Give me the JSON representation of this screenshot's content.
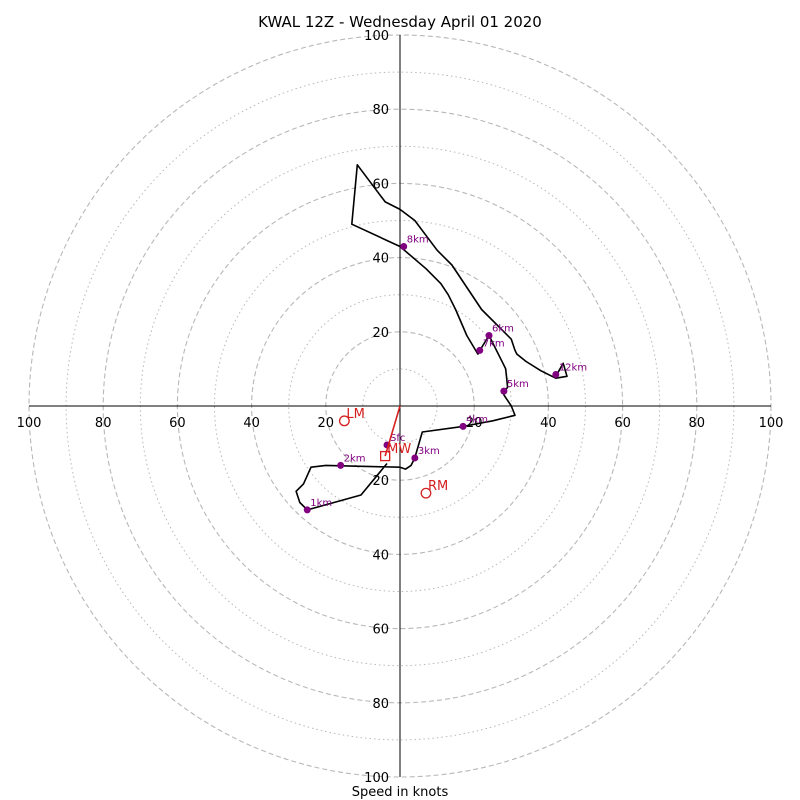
{
  "chart_data": {
    "type": "hodograph",
    "title": "KWAL 12Z - Wednesday April 01 2020",
    "xlabel": "Speed in knots",
    "ylabel": "",
    "rmax": 100,
    "ring_major": [
      20,
      40,
      60,
      80,
      100
    ],
    "ring_minor": [
      10,
      30,
      50,
      70,
      90
    ],
    "tick_values": [
      20,
      40,
      60,
      80,
      100
    ],
    "tick_labels": {
      "left": [
        "20",
        "40",
        "60",
        "80",
        "100"
      ],
      "right": [
        "20",
        "40",
        "60",
        "80",
        "100"
      ],
      "up": [
        "20",
        "40",
        "60",
        "80",
        "100"
      ],
      "down": [
        "20",
        "40",
        "60",
        "80",
        "100"
      ]
    },
    "grid": true,
    "profile_line": [
      [
        -3.5,
        -15.5
      ],
      [
        -10.5,
        -24
      ],
      [
        -25,
        -28
      ],
      [
        -27,
        -26
      ],
      [
        -28,
        -23
      ],
      [
        -26,
        -21
      ],
      [
        -24,
        -16.5
      ],
      [
        -20,
        -16
      ],
      [
        0,
        -16.5
      ],
      [
        1.5,
        -17
      ],
      [
        3,
        -16
      ],
      [
        4,
        -14
      ],
      [
        6,
        -7
      ],
      [
        17,
        -5.5
      ],
      [
        25,
        -4
      ],
      [
        31,
        -2.5
      ],
      [
        30,
        0
      ],
      [
        28,
        3
      ],
      [
        28,
        4
      ],
      [
        29,
        5
      ],
      [
        28.5,
        10
      ],
      [
        28,
        11
      ],
      [
        24,
        19
      ],
      [
        21.5,
        15
      ],
      [
        21,
        14
      ],
      [
        18,
        19
      ],
      [
        15,
        26
      ],
      [
        13,
        30
      ],
      [
        11,
        33
      ],
      [
        7,
        37
      ],
      [
        0,
        43
      ],
      [
        -13,
        49
      ],
      [
        -11.5,
        65
      ],
      [
        -4,
        55
      ],
      [
        0,
        53
      ],
      [
        4,
        50
      ],
      [
        10,
        42
      ],
      [
        14,
        38
      ],
      [
        22,
        26
      ],
      [
        30,
        18
      ],
      [
        31,
        15
      ],
      [
        31.5,
        14
      ],
      [
        34,
        12
      ],
      [
        38,
        9.5
      ],
      [
        42,
        7.5
      ],
      [
        45,
        8
      ],
      [
        44,
        11.5
      ],
      [
        42,
        8
      ]
    ],
    "height_points": [
      {
        "label": "Sfc",
        "u": -3.5,
        "v": -10.5
      },
      {
        "label": "1km",
        "u": -25,
        "v": -28
      },
      {
        "label": "2km",
        "u": -16,
        "v": -16
      },
      {
        "label": "3km",
        "u": 4,
        "v": -14
      },
      {
        "label": "4km",
        "u": 17,
        "v": -5.5
      },
      {
        "label": "5km",
        "u": 28,
        "v": 4
      },
      {
        "label": "6km",
        "u": 24,
        "v": 19
      },
      {
        "label": "7km",
        "u": 21.5,
        "v": 15
      },
      {
        "label": "8km",
        "u": 1,
        "v": 43
      },
      {
        "label": "12km",
        "u": 42,
        "v": 8.5
      }
    ],
    "motion_markers": [
      {
        "label": "LM",
        "u": -15,
        "v": -4,
        "shape": "circle"
      },
      {
        "label": "RM",
        "u": 7,
        "v": -23.5,
        "shape": "circle"
      },
      {
        "label": "MW",
        "u": -4,
        "v": -13.5,
        "shape": "square"
      }
    ],
    "storm_motion_vector": {
      "u": -4,
      "v": -13.5
    },
    "colors": {
      "profile": "#000000",
      "height_points": "#800080",
      "motion": "#d62020",
      "grid": "#b8b8b8",
      "axes": "#000000"
    }
  }
}
